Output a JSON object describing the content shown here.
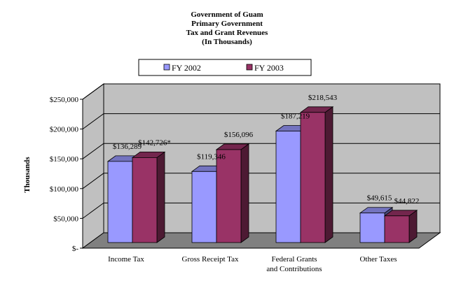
{
  "chart_data": {
    "type": "bar",
    "title_lines": [
      "Government of Guam",
      "Primary Government",
      "Tax and Grant Revenues",
      "(In Thousands)"
    ],
    "ylabel": "Thousands",
    "xlabel": "",
    "categories": [
      [
        "Income Tax"
      ],
      [
        "Gross Receipt Tax"
      ],
      [
        "Federal Grants",
        "and Contributions"
      ],
      [
        "Other Taxes"
      ]
    ],
    "series": [
      {
        "name": "FY 2002",
        "color": "#9999ff",
        "values": [
          136289,
          119346,
          187219,
          49615
        ],
        "labels": [
          "$136,289",
          "$119,346",
          "$187,219",
          "$49,615"
        ]
      },
      {
        "name": "FY 2003",
        "color": "#993366",
        "values": [
          142726,
          156096,
          218543,
          44822
        ],
        "labels": [
          "$142,726*",
          "$156,096",
          "$218,543",
          "$44,822"
        ]
      }
    ],
    "ylim": [
      0,
      250000
    ],
    "yticks": [
      0,
      50000,
      100000,
      150000,
      200000,
      250000
    ],
    "ytick_labels": [
      "$-",
      "$50,000",
      "$100,000",
      "$150,000",
      "$200,000",
      "$250,000"
    ],
    "grid": true,
    "legend_position": "top-center",
    "wall_color": "#c0c0c0",
    "floor_color": "#808080"
  }
}
